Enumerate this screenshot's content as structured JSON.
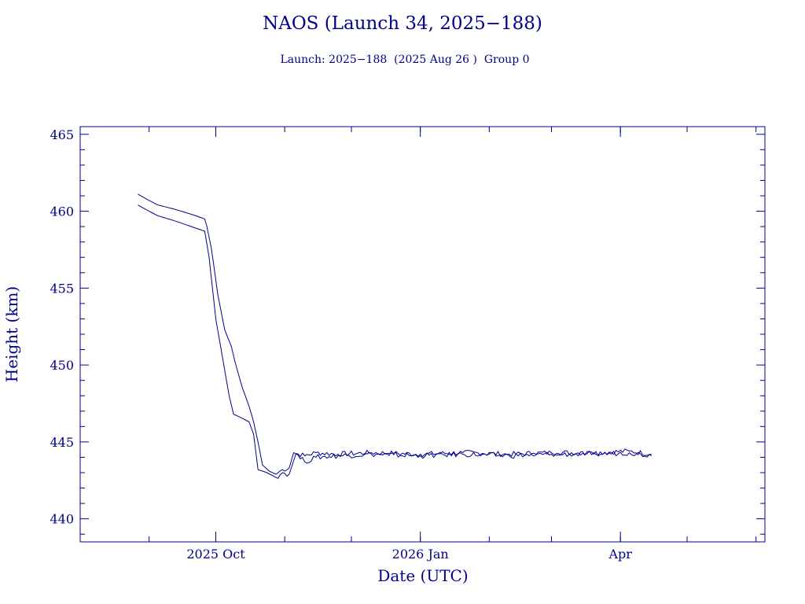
{
  "title": "NAOS (Launch 34, 2025−188)",
  "subtitle": "Launch: 2025−188  (2025 Aug 26 )  Group 0",
  "chart_data": {
    "type": "line",
    "title": "NAOS (Launch 34, 2025−188)",
    "subtitle": "Launch: 2025−188  (2025 Aug 26 )  Group 0",
    "xlabel": "Date (UTC)",
    "ylabel": "Height (km)",
    "x_scale": "date",
    "xlim": [
      "2025-08-01",
      "2026-06-05"
    ],
    "ylim": [
      438.5,
      465.5
    ],
    "x_ticks": [
      {
        "date": "2025-10-01",
        "label": "2025 Oct"
      },
      {
        "date": "2026-01-01",
        "label": "2026 Jan"
      },
      {
        "date": "2026-04-01",
        "label": "Apr"
      }
    ],
    "y_ticks": [
      440,
      445,
      450,
      455,
      460,
      465
    ],
    "grid": false,
    "line_color": "#00008b",
    "series": [
      {
        "points": [
          [
            "2025-08-27",
            461.1
          ],
          [
            "2025-09-01",
            460.7
          ],
          [
            "2025-09-05",
            460.4
          ],
          [
            "2025-09-12",
            460.15
          ],
          [
            "2025-09-20",
            459.8
          ],
          [
            "2025-09-26",
            459.5
          ],
          [
            "2025-09-27",
            459.0
          ],
          [
            "2025-09-29",
            457.6
          ],
          [
            "2025-10-02",
            454.5
          ],
          [
            "2025-10-05",
            452.3
          ],
          [
            "2025-10-08",
            451.2
          ],
          [
            "2025-10-10",
            450.0
          ],
          [
            "2025-10-13",
            448.5
          ],
          [
            "2025-10-16",
            447.3
          ],
          [
            "2025-10-18",
            446.3
          ],
          [
            "2025-10-20",
            445.0
          ],
          [
            "2025-10-22",
            443.5
          ],
          [
            "2025-10-25",
            443.1
          ],
          [
            "2025-10-28",
            442.9
          ],
          [
            "2025-10-31",
            443.2
          ],
          [
            "2025-11-03",
            443.3
          ],
          [
            "2025-11-05",
            444.3
          ],
          [
            "2025-11-10",
            444.1
          ],
          [
            "2025-11-15",
            444.3
          ],
          [
            "2025-11-25",
            444.2
          ],
          [
            "2025-12-10",
            444.3
          ],
          [
            "2026-01-01",
            444.2
          ],
          [
            "2026-01-20",
            444.3
          ],
          [
            "2026-02-10",
            444.2
          ],
          [
            "2026-03-01",
            444.3
          ],
          [
            "2026-03-20",
            444.3
          ],
          [
            "2026-04-05",
            444.4
          ],
          [
            "2026-04-15",
            444.2
          ]
        ]
      },
      {
        "points": [
          [
            "2025-08-27",
            460.4
          ],
          [
            "2025-09-01",
            460.0
          ],
          [
            "2025-09-05",
            459.7
          ],
          [
            "2025-09-12",
            459.4
          ],
          [
            "2025-09-20",
            459.0
          ],
          [
            "2025-09-26",
            458.7
          ],
          [
            "2025-09-28",
            457.0
          ],
          [
            "2025-10-01",
            453.0
          ],
          [
            "2025-10-04",
            450.5
          ],
          [
            "2025-10-07",
            448.0
          ],
          [
            "2025-10-09",
            446.8
          ],
          [
            "2025-10-12",
            446.6
          ],
          [
            "2025-10-16",
            446.3
          ],
          [
            "2025-10-18",
            445.5
          ],
          [
            "2025-10-20",
            443.2
          ],
          [
            "2025-10-24",
            443.0
          ],
          [
            "2025-10-28",
            442.7
          ],
          [
            "2025-10-31",
            443.0
          ],
          [
            "2025-11-03",
            442.9
          ],
          [
            "2025-11-06",
            444.2
          ],
          [
            "2025-11-10",
            443.7
          ],
          [
            "2025-11-15",
            444.0
          ],
          [
            "2025-11-25",
            444.1
          ],
          [
            "2025-12-10",
            444.2
          ],
          [
            "2026-01-01",
            444.1
          ],
          [
            "2026-01-20",
            444.2
          ],
          [
            "2026-02-10",
            444.1
          ],
          [
            "2026-03-01",
            444.2
          ],
          [
            "2026-03-20",
            444.2
          ],
          [
            "2026-04-05",
            444.3
          ],
          [
            "2026-04-15",
            444.1
          ]
        ]
      }
    ]
  }
}
